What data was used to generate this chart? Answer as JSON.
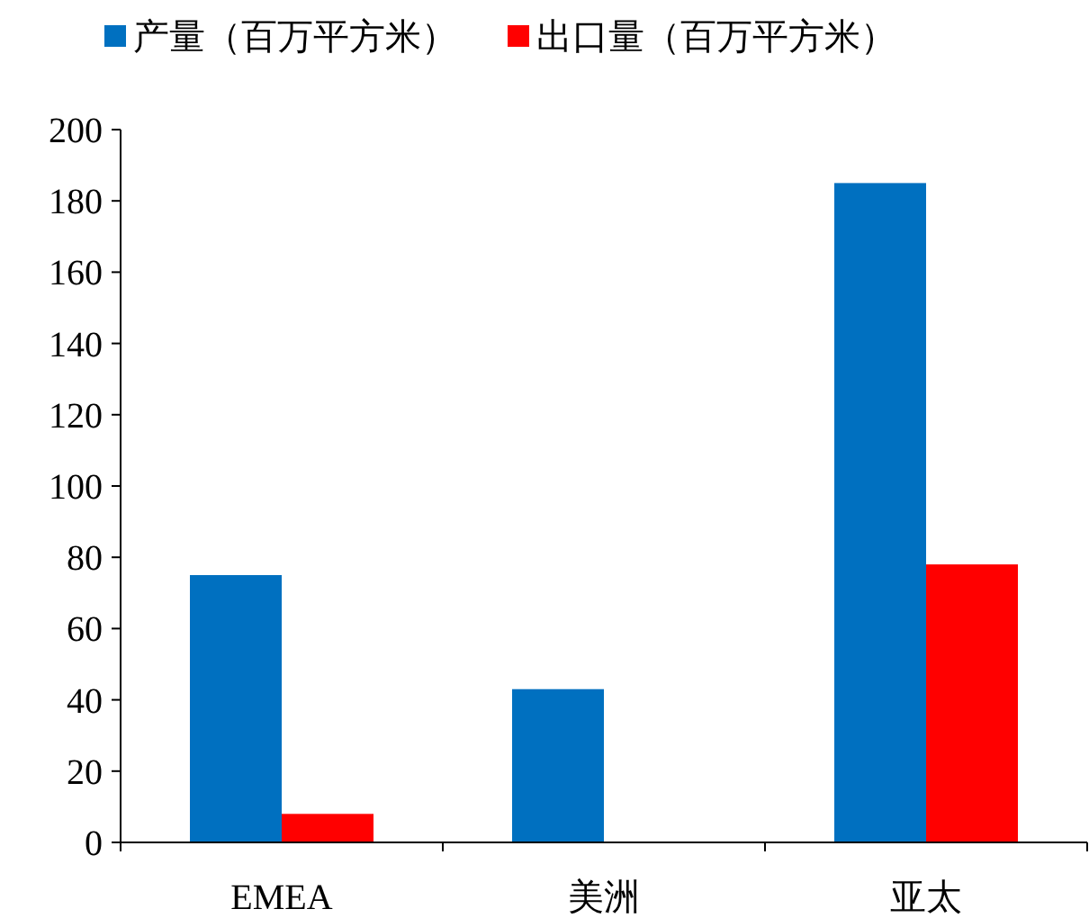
{
  "chart_data": {
    "type": "bar",
    "categories": [
      "EMEA",
      "美洲",
      "亚太"
    ],
    "series": [
      {
        "name": "产量（百万平方米）",
        "color": "#0070c0",
        "values": [
          75,
          43,
          185
        ]
      },
      {
        "name": "出口量（百万平方米）",
        "color": "#ff0000",
        "values": [
          8,
          null,
          78
        ]
      }
    ],
    "ylim": [
      0,
      200
    ],
    "yticks": [
      0,
      20,
      40,
      60,
      80,
      100,
      120,
      140,
      160,
      180,
      200
    ],
    "grid": false,
    "legend": "top left"
  }
}
